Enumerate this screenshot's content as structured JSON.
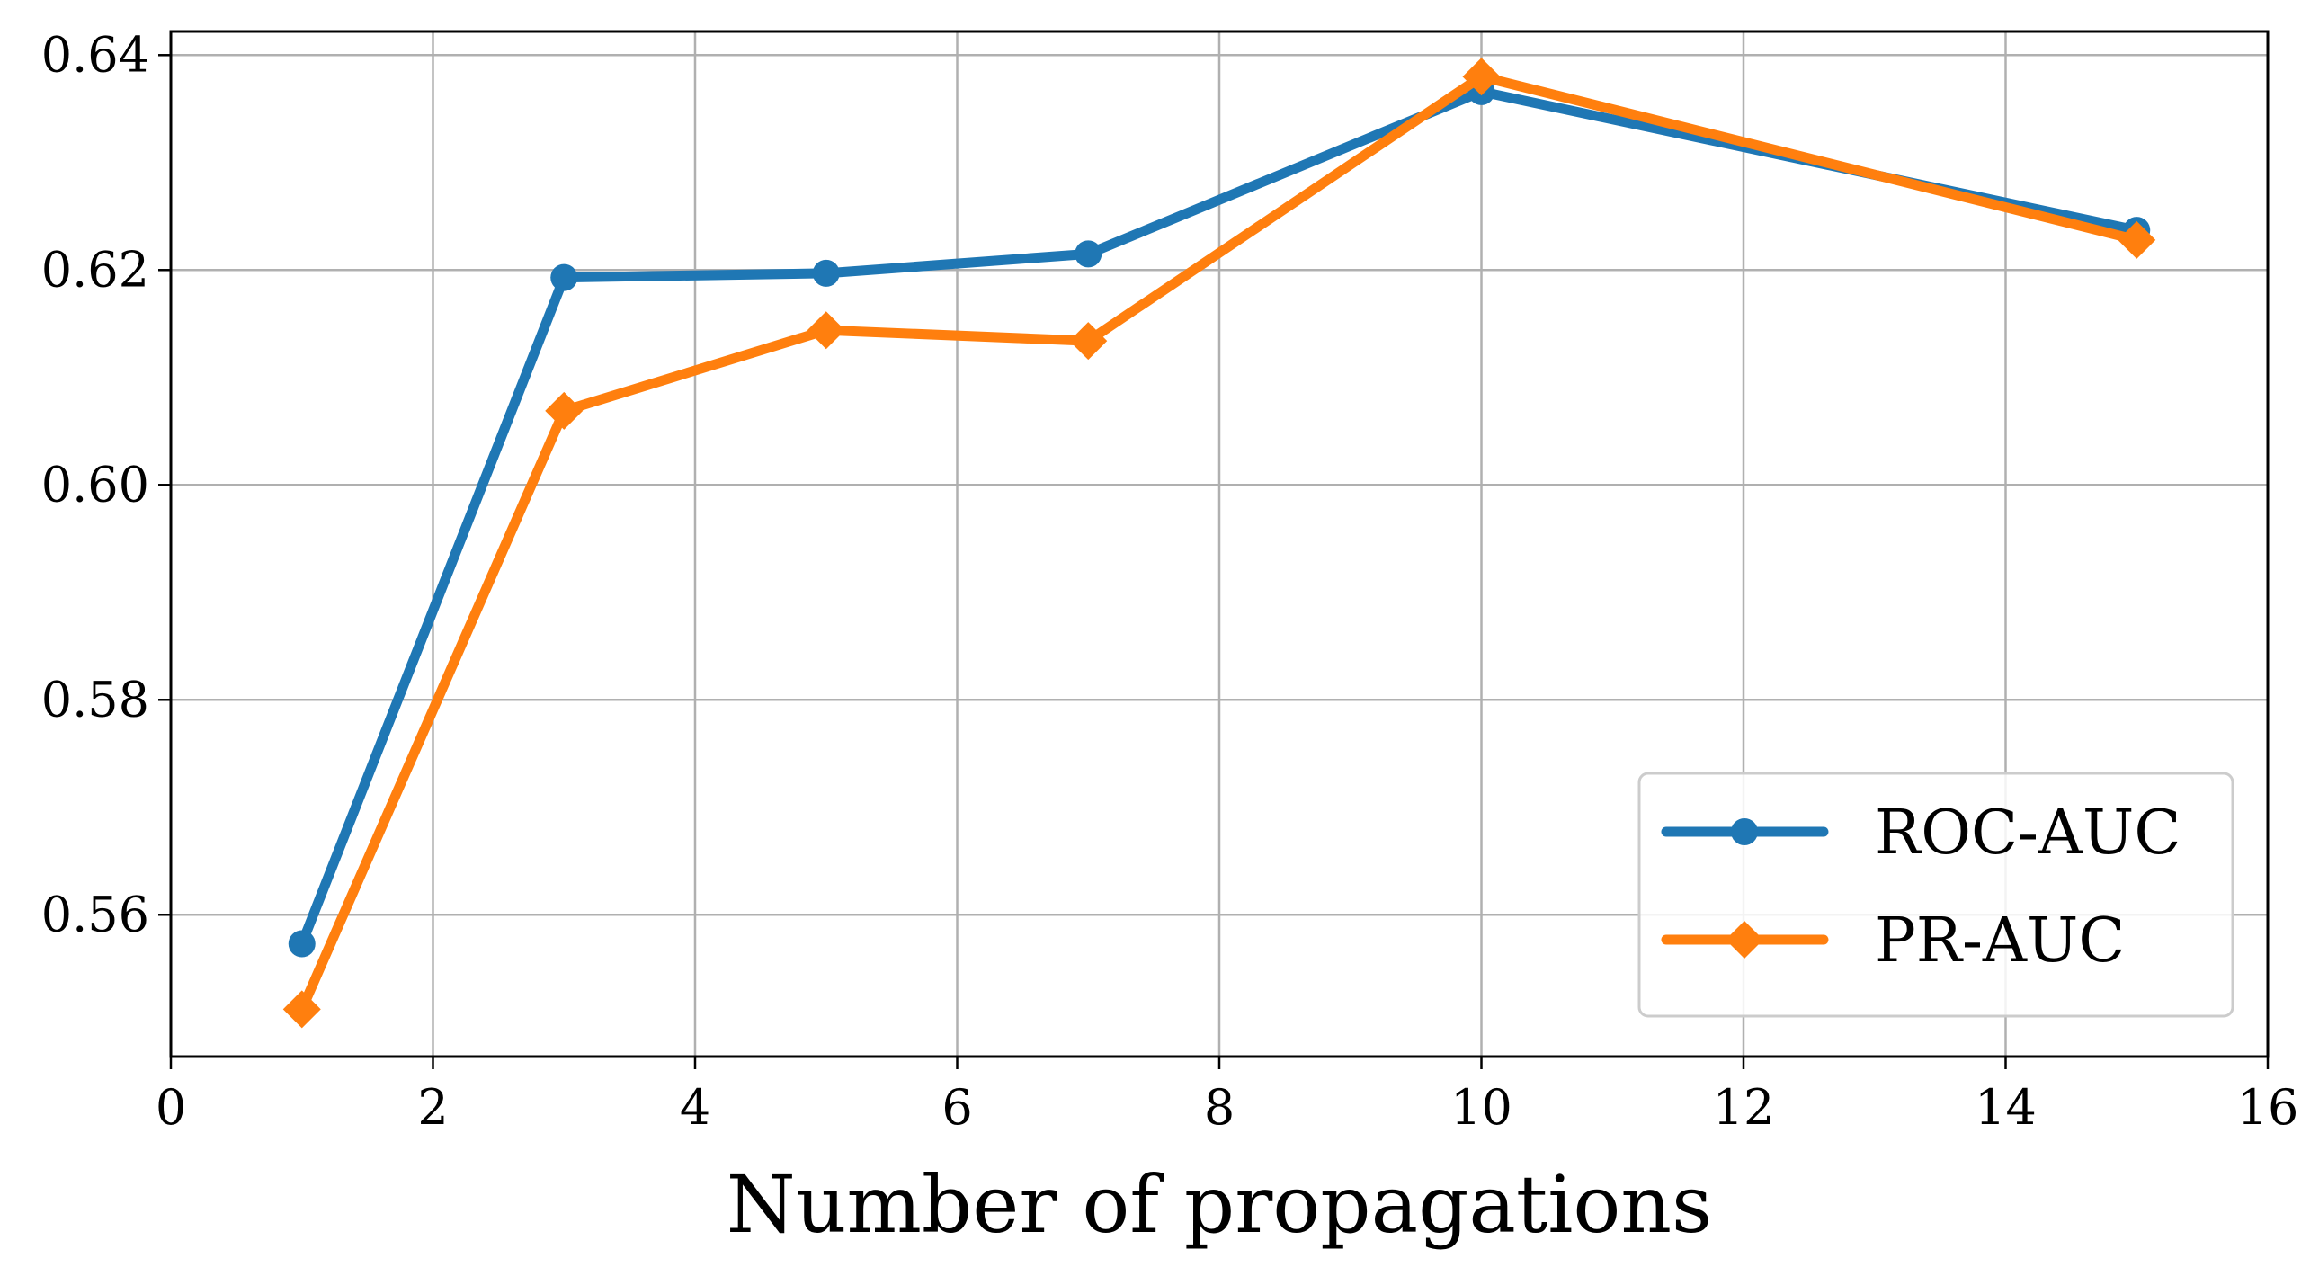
{
  "chart_data": {
    "type": "line",
    "title": "",
    "xlabel": "Number of propagations",
    "ylabel": "",
    "xlim": [
      0,
      16
    ],
    "ylim": [
      0.5468,
      0.6422
    ],
    "xticks": [
      0,
      2,
      4,
      6,
      8,
      10,
      12,
      14,
      16
    ],
    "xtick_labels": [
      "0",
      "2",
      "4",
      "6",
      "8",
      "10",
      "12",
      "14",
      "16"
    ],
    "yticks": [
      0.56,
      0.58,
      0.6,
      0.62,
      0.64
    ],
    "ytick_labels": [
      "0.56",
      "0.58",
      "0.60",
      "0.62",
      "0.64"
    ],
    "grid": true,
    "legend_position": "lower-right",
    "series": [
      {
        "name": "ROC-AUC",
        "color": "#1f77b4",
        "marker": "circle",
        "x": [
          1,
          3,
          5,
          7,
          10,
          15
        ],
        "values": [
          0.5573,
          0.6193,
          0.6197,
          0.6215,
          0.6366,
          0.6237
        ]
      },
      {
        "name": "PR-AUC",
        "color": "#ff7f0e",
        "marker": "diamond",
        "x": [
          1,
          3,
          5,
          7,
          10,
          15
        ],
        "values": [
          0.5512,
          0.6069,
          0.6144,
          0.6134,
          0.638,
          0.6228
        ]
      }
    ]
  }
}
